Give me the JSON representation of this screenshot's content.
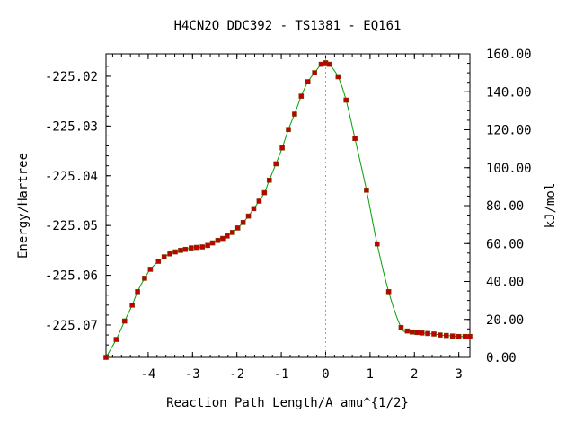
{
  "chart_data": {
    "type": "line",
    "title": "H4CN2O   DDC392 - TS1381 - EQ161",
    "xlabel": "Reaction Path Length/A amu^{1/2}",
    "ylabel_left": "Energy/Hartree",
    "ylabel_right": "kJ/mol",
    "xlim": [
      -4.95,
      3.25
    ],
    "ylim_left": [
      -225.0765,
      -225.0155
    ],
    "ylim_right": [
      0,
      160
    ],
    "x_ticks": [
      -4,
      -3,
      -2,
      -1,
      0,
      1,
      2,
      3
    ],
    "x_tick_labels": [
      "-4",
      "-3",
      "-2",
      "-1",
      "0",
      "1",
      "2",
      "3"
    ],
    "y_left_ticks": [
      -225.02,
      -225.03,
      -225.04,
      -225.05,
      -225.06,
      -225.07
    ],
    "y_left_tick_labels": [
      "-225.02",
      "-225.03",
      "-225.04",
      "-225.05",
      "-225.06",
      "-225.07"
    ],
    "y_right_ticks": [
      0,
      20,
      40,
      60,
      80,
      100,
      120,
      140,
      160
    ],
    "y_right_tick_labels": [
      "0.00",
      "20.00",
      "40.00",
      "60.00",
      "80.00",
      "100.00",
      "120.00",
      "140.00",
      "160.00"
    ],
    "ts_marker_x": 0,
    "curve_color": "#00a000",
    "point_color": "#c00000",
    "marker_line_color": "#a0a0a0",
    "grid": false,
    "points": [
      {
        "x": -4.95,
        "y": -225.0765
      },
      {
        "x": -4.72,
        "y": -225.0729
      },
      {
        "x": -4.53,
        "y": -225.0692
      },
      {
        "x": -4.36,
        "y": -225.066
      },
      {
        "x": -4.24,
        "y": -225.0633
      },
      {
        "x": -4.08,
        "y": -225.0606
      },
      {
        "x": -3.95,
        "y": -225.0588
      },
      {
        "x": -3.77,
        "y": -225.0572
      },
      {
        "x": -3.64,
        "y": -225.0563
      },
      {
        "x": -3.51,
        "y": -225.0557
      },
      {
        "x": -3.39,
        "y": -225.0553
      },
      {
        "x": -3.27,
        "y": -225.055
      },
      {
        "x": -3.16,
        "y": -225.0548
      },
      {
        "x": -3.03,
        "y": -225.0545
      },
      {
        "x": -2.91,
        "y": -225.0544
      },
      {
        "x": -2.78,
        "y": -225.0543
      },
      {
        "x": -2.66,
        "y": -225.054
      },
      {
        "x": -2.55,
        "y": -225.0535
      },
      {
        "x": -2.43,
        "y": -225.053
      },
      {
        "x": -2.32,
        "y": -225.0526
      },
      {
        "x": -2.22,
        "y": -225.0521
      },
      {
        "x": -2.1,
        "y": -225.0514
      },
      {
        "x": -1.98,
        "y": -225.0505
      },
      {
        "x": -1.86,
        "y": -225.0494
      },
      {
        "x": -1.74,
        "y": -225.0481
      },
      {
        "x": -1.62,
        "y": -225.0466
      },
      {
        "x": -1.5,
        "y": -225.0451
      },
      {
        "x": -1.38,
        "y": -225.0434
      },
      {
        "x": -1.27,
        "y": -225.0409
      },
      {
        "x": -1.12,
        "y": -225.0376
      },
      {
        "x": -0.98,
        "y": -225.0344
      },
      {
        "x": -0.84,
        "y": -225.0307
      },
      {
        "x": -0.7,
        "y": -225.0276
      },
      {
        "x": -0.55,
        "y": -225.024
      },
      {
        "x": -0.4,
        "y": -225.0211
      },
      {
        "x": -0.25,
        "y": -225.0193
      },
      {
        "x": -0.1,
        "y": -225.0176
      },
      {
        "x": 0.0,
        "y": -225.0173
      },
      {
        "x": 0.08,
        "y": -225.0176
      },
      {
        "x": 0.28,
        "y": -225.0201
      },
      {
        "x": 0.46,
        "y": -225.0248
      },
      {
        "x": 0.66,
        "y": -225.0325
      },
      {
        "x": 0.92,
        "y": -225.0429
      },
      {
        "x": 1.16,
        "y": -225.0537
      },
      {
        "x": 1.42,
        "y": -225.0633
      },
      {
        "x": 1.7,
        "y": -225.0705
      },
      {
        "x": 1.84,
        "y": -225.0712
      },
      {
        "x": 1.95,
        "y": -225.0714
      },
      {
        "x": 2.06,
        "y": -225.0715
      },
      {
        "x": 2.17,
        "y": -225.0716
      },
      {
        "x": 2.3,
        "y": -225.0717
      },
      {
        "x": 2.44,
        "y": -225.0718
      },
      {
        "x": 2.58,
        "y": -225.072
      },
      {
        "x": 2.72,
        "y": -225.0721
      },
      {
        "x": 2.86,
        "y": -225.0722
      },
      {
        "x": 3.0,
        "y": -225.0723
      },
      {
        "x": 3.14,
        "y": -225.0723
      },
      {
        "x": 3.25,
        "y": -225.0723
      }
    ]
  }
}
